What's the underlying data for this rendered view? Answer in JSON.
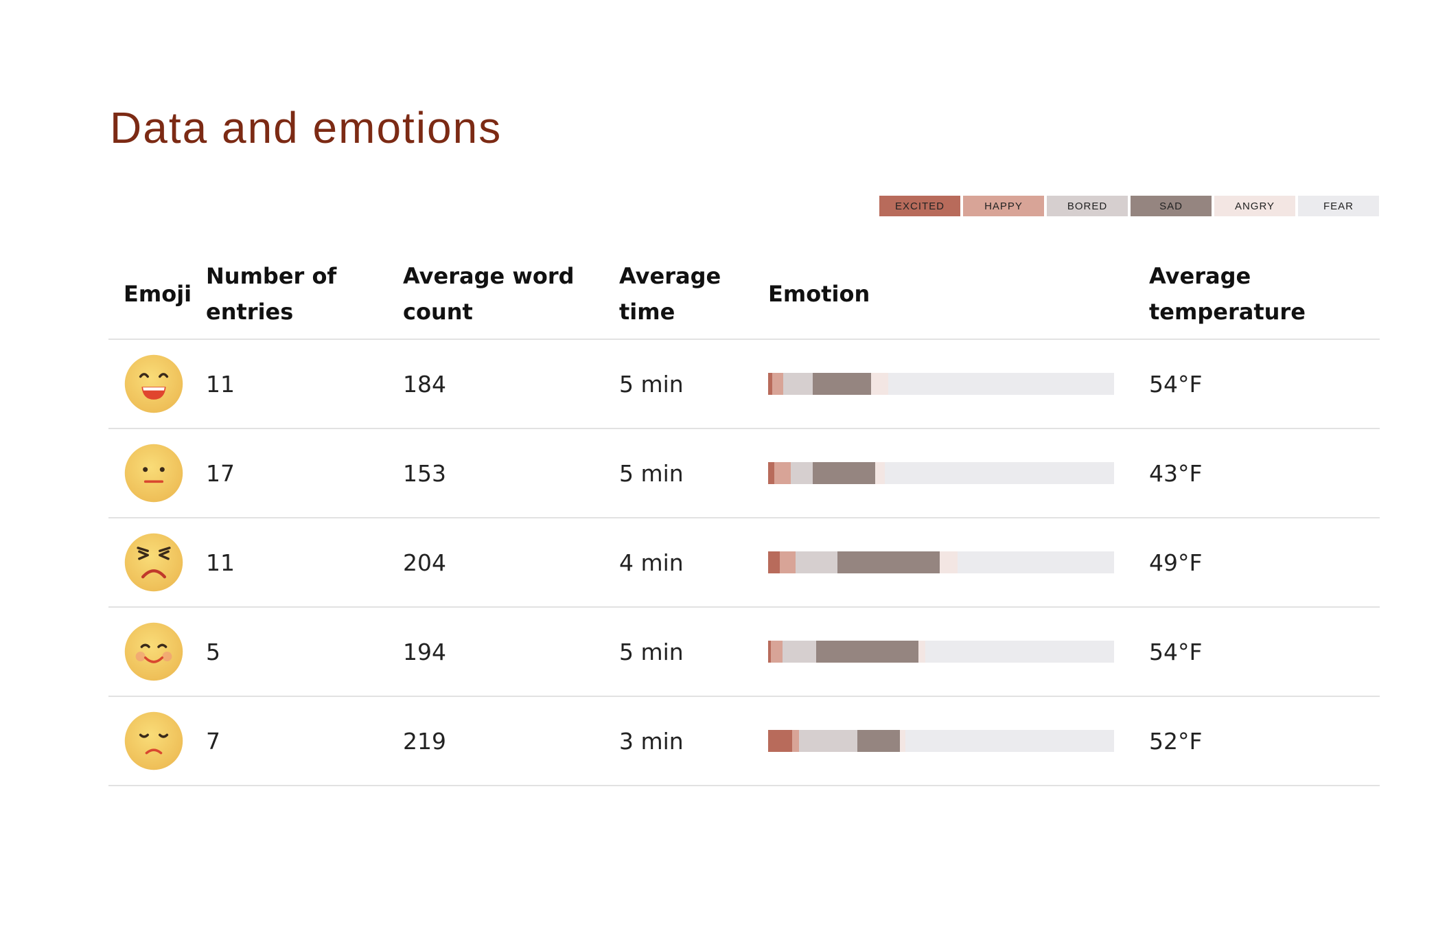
{
  "page": {
    "title": "Data and emotions"
  },
  "legend": [
    {
      "label": "EXCITED",
      "color": "#b86b5b"
    },
    {
      "label": "HAPPY",
      "color": "#d8a497"
    },
    {
      "label": "BORED",
      "color": "#d6cfcf"
    },
    {
      "label": "SAD",
      "color": "#958580"
    },
    {
      "label": "ANGRY",
      "color": "#f3e6e3"
    },
    {
      "label": "FEAR",
      "color": "#ebebee"
    }
  ],
  "table": {
    "headers": {
      "emoji": "Emoji",
      "entries": "Number of entries",
      "words": "Average word count",
      "time": "Average time",
      "emotion": "Emotion",
      "temp": "Average temperature"
    },
    "rows": [
      {
        "emoji": "laughing-face-icon",
        "entries": "11",
        "words": "184",
        "time": "5 min",
        "temp": "54°F",
        "emotions": {
          "excited": 0.012,
          "happy": 0.032,
          "bored": 0.085,
          "sad": 0.168,
          "angry": 0.05
        }
      },
      {
        "emoji": "neutral-face-icon",
        "entries": "17",
        "words": "153",
        "time": "5 min",
        "temp": "43°F",
        "emotions": {
          "excited": 0.017,
          "happy": 0.048,
          "bored": 0.064,
          "sad": 0.18,
          "angry": 0.028
        }
      },
      {
        "emoji": "angry-face-icon",
        "entries": "11",
        "words": "204",
        "time": "4 min",
        "temp": "49°F",
        "emotions": {
          "excited": 0.034,
          "happy": 0.045,
          "bored": 0.122,
          "sad": 0.296,
          "angry": 0.05
        }
      },
      {
        "emoji": "blushing-face-icon",
        "entries": "5",
        "words": "194",
        "time": "5 min",
        "temp": "54°F",
        "emotions": {
          "excited": 0.008,
          "happy": 0.033,
          "bored": 0.098,
          "sad": 0.296,
          "angry": 0.02
        }
      },
      {
        "emoji": "sad-face-icon",
        "entries": "7",
        "words": "219",
        "time": "3 min",
        "temp": "52°F",
        "emotions": {
          "excited": 0.07,
          "happy": 0.02,
          "bored": 0.168,
          "sad": 0.123,
          "angry": 0.015
        }
      }
    ]
  }
}
